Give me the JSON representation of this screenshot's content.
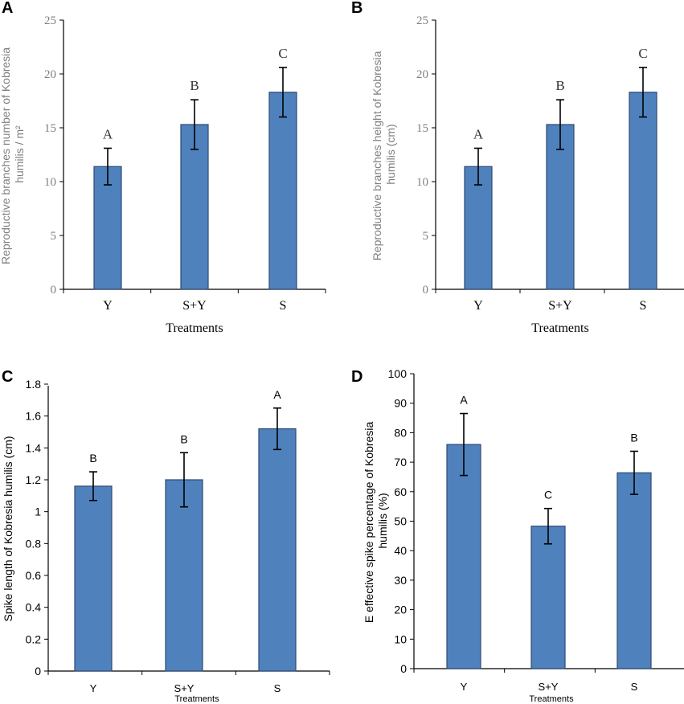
{
  "chart_data": [
    {
      "panel": "A",
      "type": "bar",
      "categories": [
        "Y",
        "S+Y",
        "S"
      ],
      "values": [
        11.4,
        15.3,
        18.3
      ],
      "errors": [
        1.7,
        2.3,
        2.3
      ],
      "significance": [
        "A",
        "B",
        "C"
      ],
      "ylabel_lines": [
        "Reproductive branches number of Kobresia",
        "humilis / m²"
      ],
      "xlabel": "Treatments",
      "ylim": [
        0,
        25
      ],
      "yticks": [
        "0",
        "5",
        "10",
        "15",
        "20",
        "25"
      ]
    },
    {
      "panel": "B",
      "type": "bar",
      "categories": [
        "Y",
        "S+Y",
        "S"
      ],
      "values": [
        11.4,
        15.3,
        18.3
      ],
      "errors": [
        1.7,
        2.3,
        2.3
      ],
      "significance": [
        "A",
        "B",
        "C"
      ],
      "ylabel_lines": [
        "Reproductive branches height of Kobresia",
        "humilis  (cm)"
      ],
      "xlabel": "Treatments",
      "ylim": [
        0,
        25
      ],
      "yticks": [
        "0",
        "5",
        "10",
        "15",
        "20",
        "25"
      ]
    },
    {
      "panel": "C",
      "type": "bar",
      "categories": [
        "Y",
        "S+Y",
        "S"
      ],
      "values": [
        1.16,
        1.2,
        1.52
      ],
      "errors": [
        0.09,
        0.17,
        0.13
      ],
      "significance": [
        "B",
        "B",
        "A"
      ],
      "ylabel_lines": [
        "Spike length of  Kobresia humilis (cm)"
      ],
      "xlabel": "Treatments",
      "ylim": [
        0,
        1.8
      ],
      "yticks": [
        "0",
        "0.2",
        "0.4",
        "0.6",
        "0.8",
        "1",
        "1.2",
        "1.4",
        "1.6",
        "1.8"
      ]
    },
    {
      "panel": "D",
      "type": "bar",
      "categories": [
        "Y",
        "S+Y",
        "S"
      ],
      "values": [
        76,
        48.3,
        66.4
      ],
      "errors": [
        10.5,
        6,
        7.3
      ],
      "significance": [
        "A",
        "C",
        "B"
      ],
      "ylabel_lines": [
        "E effective spike percentage of Kobresia",
        "humilis (%)"
      ],
      "xlabel": "Treatments",
      "ylim": [
        0,
        100
      ],
      "yticks": [
        "0",
        "10",
        "20",
        "30",
        "40",
        "50",
        "60",
        "70",
        "80",
        "90",
        "100"
      ]
    }
  ]
}
